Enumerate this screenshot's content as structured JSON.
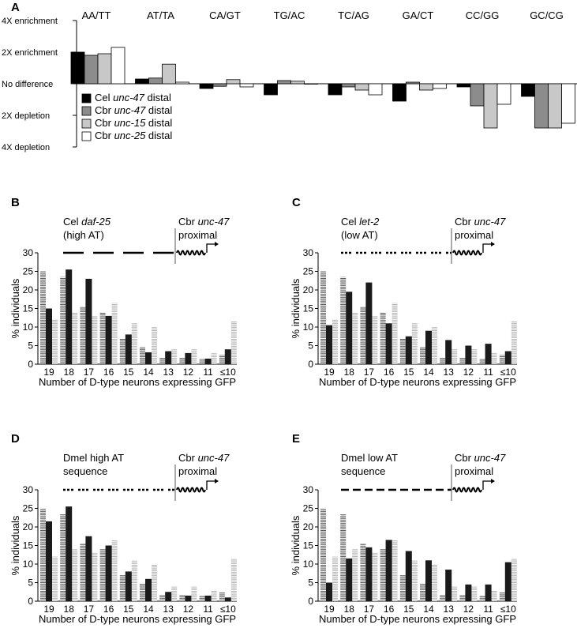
{
  "chart_data": [
    {
      "panel": "A",
      "type": "bar",
      "categories": [
        "AA/TT",
        "AT/TA",
        "CA/GT",
        "TG/AC",
        "TC/AG",
        "GA/CT",
        "CC/GG",
        "GC/CG"
      ],
      "y_tick_labels": [
        "4X enrichment",
        "2X enrichment",
        "No difference",
        "2X depletion",
        "4X depletion"
      ],
      "ylim": [
        -2,
        2
      ],
      "legend": [
        {
          "prefix": "Cel ",
          "gene": "unc-47",
          "suffix": " distal",
          "color": "#000000"
        },
        {
          "prefix": "Cbr ",
          "gene": "unc-47",
          "suffix": " distal",
          "color": "#8c8c8c"
        },
        {
          "prefix": "Cbr ",
          "gene": "unc-15",
          "suffix": " distal",
          "color": "#c8c8c8"
        },
        {
          "prefix": "Cbr ",
          "gene": "unc-25",
          "suffix": " distal",
          "color": "#ffffff"
        }
      ],
      "legend_position": "middle-left",
      "series": [
        {
          "values": [
            1.0,
            0.15,
            -0.15,
            -0.35,
            -0.35,
            -0.55,
            -0.1,
            -0.4
          ]
        },
        {
          "values": [
            0.9,
            0.18,
            -0.08,
            0.1,
            -0.1,
            0.05,
            -0.7,
            -1.4
          ]
        },
        {
          "values": [
            0.95,
            0.62,
            0.13,
            0.08,
            -0.2,
            -0.2,
            -1.4,
            -1.4
          ]
        },
        {
          "values": [
            1.15,
            0.05,
            -0.1,
            0.0,
            -0.35,
            -0.15,
            -0.65,
            -1.25
          ]
        }
      ]
    },
    {
      "panel": "B",
      "type": "bar",
      "construct_label": {
        "line1_prefix": "Cel ",
        "line1_gene": "daf-25",
        "line2": "(high AT)"
      },
      "promoter_label": {
        "prefix": "Cbr ",
        "gene": "unc-47",
        "line2": "proximal"
      },
      "ylabel": "% individuals",
      "xlabel": "Number of D-type neurons expressing GFP",
      "categories": [
        "19",
        "18",
        "17",
        "16",
        "15",
        "14",
        "13",
        "12",
        "11",
        "≤10"
      ],
      "yticks": [
        0,
        5,
        10,
        15,
        20,
        25,
        30
      ],
      "ylim": [
        0,
        30
      ],
      "reference_left": [
        25,
        23.5,
        15.5,
        14,
        7,
        4.7,
        1.7,
        1.7,
        1.5,
        2.5
      ],
      "reference_right": [
        12,
        14,
        13,
        16.5,
        11,
        10,
        4,
        4,
        3,
        11.5
      ],
      "values": [
        15,
        25.5,
        23,
        13,
        8,
        3.2,
        3.5,
        3,
        1.5,
        4
      ]
    },
    {
      "panel": "C",
      "type": "bar",
      "construct_label": {
        "line1_prefix": "Cel ",
        "line1_gene": "let-2",
        "line2": "(low AT)"
      },
      "promoter_label": {
        "prefix": "Cbr ",
        "gene": "unc-47",
        "line2": "proximal"
      },
      "ylabel": "% individuals",
      "xlabel": "Number of D-type neurons expressing GFP",
      "categories": [
        "19",
        "18",
        "17",
        "16",
        "15",
        "14",
        "13",
        "12",
        "11",
        "≤10"
      ],
      "yticks": [
        0,
        5,
        10,
        15,
        20,
        25,
        30
      ],
      "ylim": [
        0,
        30
      ],
      "reference_left": [
        25,
        23.5,
        15.5,
        14,
        7,
        4.7,
        1.7,
        1.7,
        1.5,
        2.5
      ],
      "reference_right": [
        12,
        14,
        13,
        16.5,
        11,
        10,
        4,
        4,
        3,
        11.5
      ],
      "values": [
        10.5,
        19.5,
        22,
        11,
        7.5,
        9,
        6.5,
        5,
        5.5,
        3.5
      ]
    },
    {
      "panel": "D",
      "type": "bar",
      "construct_label": {
        "line1": "Dmel high AT",
        "line2": "sequence"
      },
      "promoter_label": {
        "prefix": "Cbr ",
        "gene": "unc-47",
        "line2": "proximal"
      },
      "ylabel": "% individuals",
      "xlabel": "Number of D-type neurons expressing GFP",
      "categories": [
        "19",
        "18",
        "17",
        "16",
        "15",
        "14",
        "13",
        "12",
        "11",
        "≤10"
      ],
      "yticks": [
        0,
        5,
        10,
        15,
        20,
        25,
        30
      ],
      "ylim": [
        0,
        30
      ],
      "reference_left": [
        25,
        23.5,
        15.5,
        14,
        7,
        4.7,
        1.7,
        1.7,
        1.5,
        2.5
      ],
      "reference_right": [
        12,
        14,
        13,
        16.5,
        11,
        10,
        4,
        4,
        3,
        11.5
      ],
      "values": [
        21.5,
        25.5,
        17.5,
        15,
        8,
        6,
        2.5,
        1.5,
        1.5,
        1
      ]
    },
    {
      "panel": "E",
      "type": "bar",
      "construct_label": {
        "line1": "Dmel low AT",
        "line2": "sequence"
      },
      "promoter_label": {
        "prefix": "Cbr ",
        "gene": "unc-47",
        "line2": "proximal"
      },
      "ylabel": "% individuals",
      "xlabel": "Number of D-type neurons expressing GFP",
      "categories": [
        "19",
        "18",
        "17",
        "16",
        "15",
        "14",
        "13",
        "12",
        "11",
        "≤10"
      ],
      "yticks": [
        0,
        5,
        10,
        15,
        20,
        25,
        30
      ],
      "ylim": [
        0,
        30
      ],
      "reference_left": [
        25,
        23.5,
        15.5,
        14,
        7,
        4.7,
        1.7,
        1.7,
        1.5,
        2.5
      ],
      "reference_right": [
        12,
        14,
        13,
        16.5,
        11,
        10,
        4,
        4,
        3,
        11.5
      ],
      "values": [
        5,
        11.5,
        14.5,
        16.5,
        13.5,
        11,
        8.5,
        4.5,
        4.5,
        10.5
      ]
    }
  ]
}
